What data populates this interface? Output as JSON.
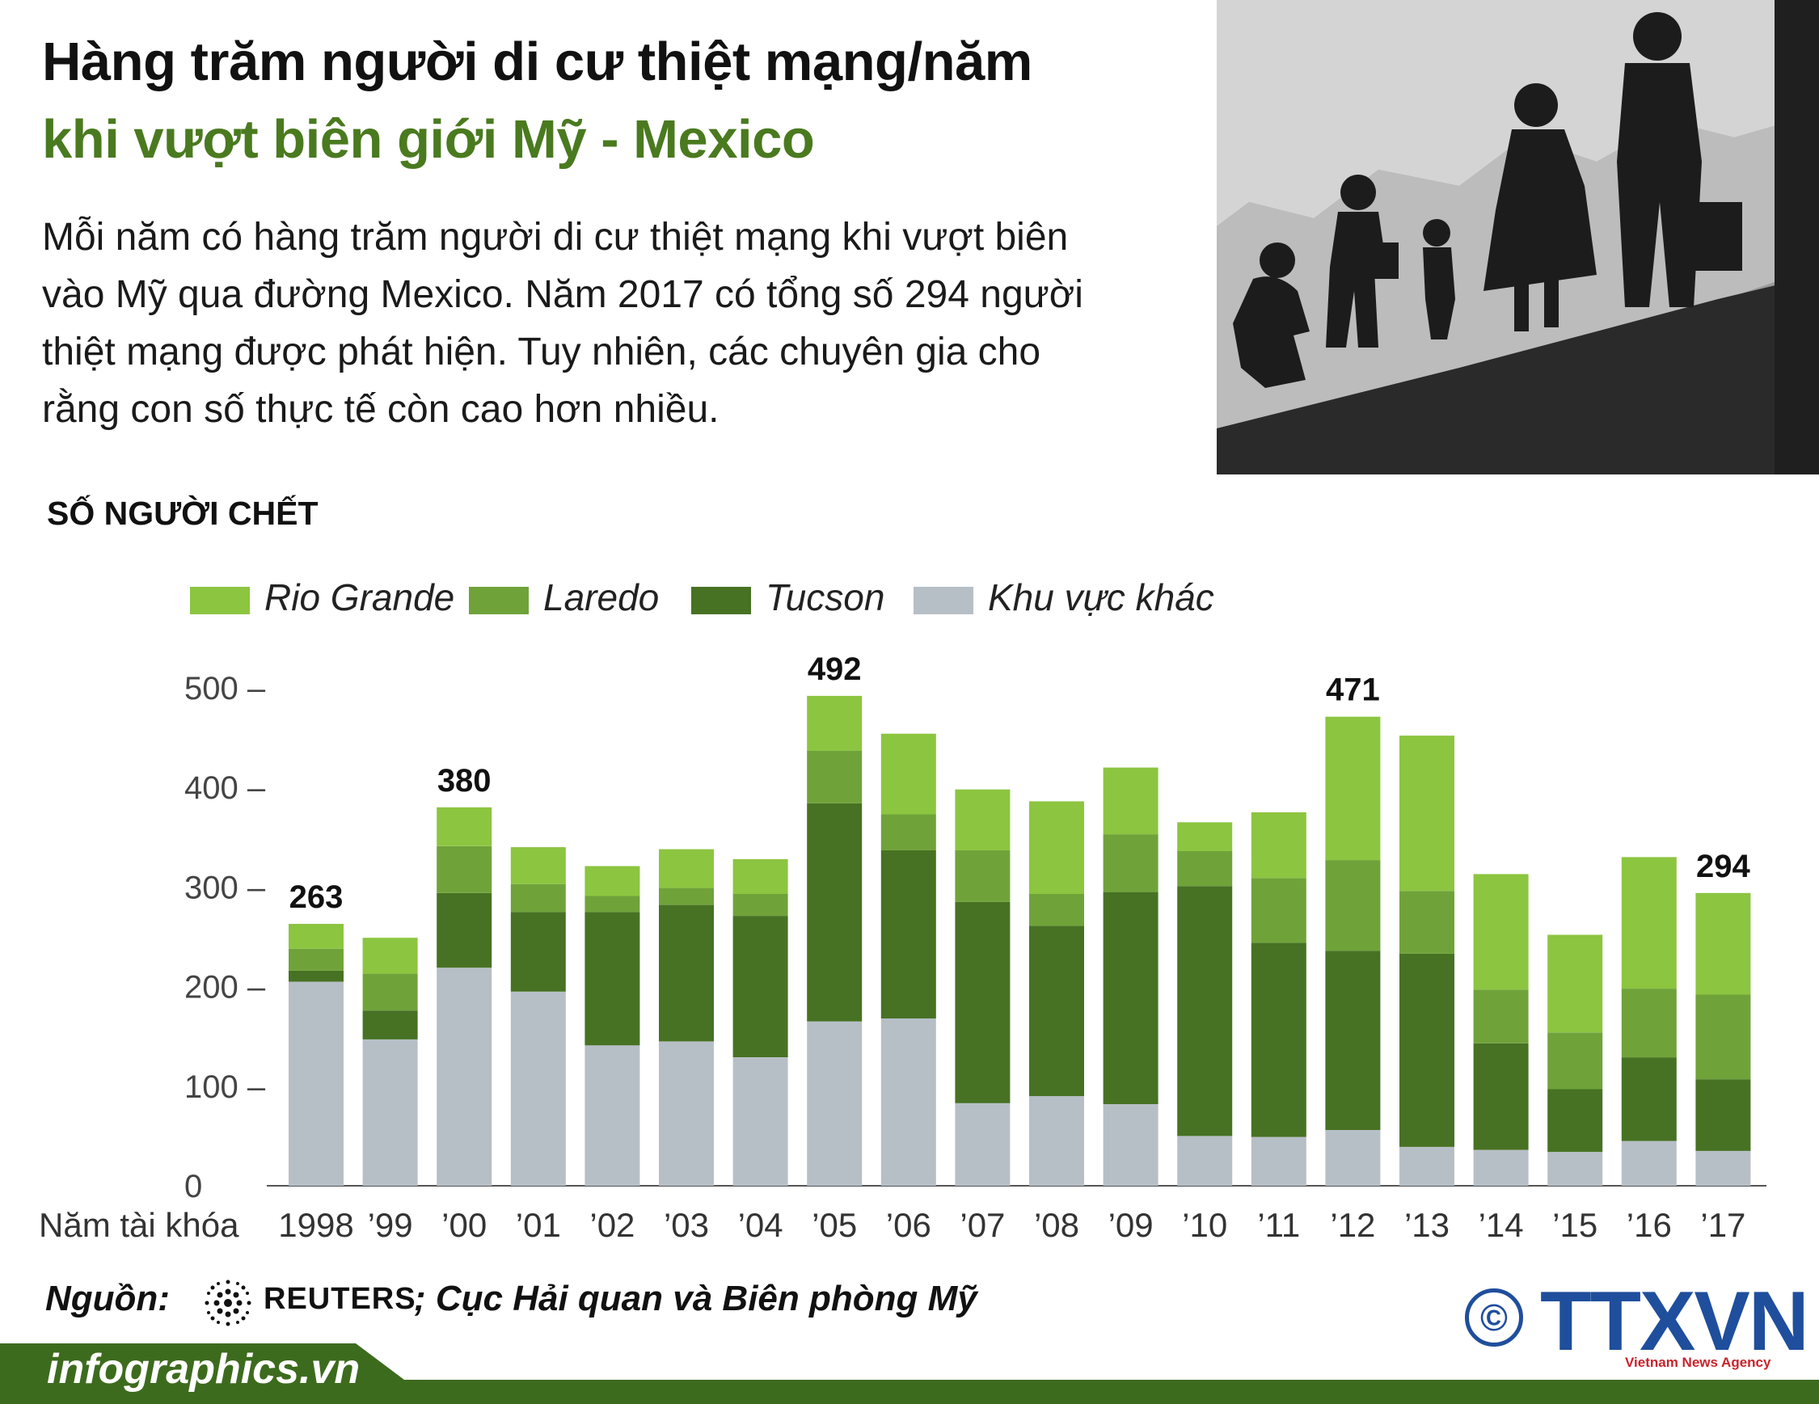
{
  "header": {
    "title_line1": "Hàng trăm người di cư thiệt mạng/năm",
    "title_line2": "khi vượt biên giới Mỹ - Mexico",
    "intro_lines": [
      "Mỗi năm có hàng trăm người di cư thiệt mạng khi vượt biên",
      "vào Mỹ qua đường Mexico. Năm 2017 có tổng số 294 người",
      "thiệt mạng được phát hiện. Tuy nhiên, các chuyên gia cho",
      "rằng con số thực tế còn cao hơn nhiều."
    ]
  },
  "colors": {
    "rio_grande": "#8cc540",
    "laredo": "#6fa33a",
    "tucson": "#477223",
    "other": "#b7bfc6",
    "title_green": "#4a7a1f",
    "footer_green": "#3d6b1e",
    "ttxvn_blue": "#1f4e9c"
  },
  "chart_data": {
    "type": "bar",
    "stacked": true,
    "title": "SỐ NGƯỜI CHẾT",
    "xlabel_prefix": "Năm tài khóa",
    "categories": [
      "1998",
      "’99",
      "’00",
      "’01",
      "’02",
      "’03",
      "’04",
      "’05",
      "’06",
      "’07",
      "’08",
      "’09",
      "’10",
      "’11",
      "’12",
      "’13",
      "’14",
      "’15",
      "’16",
      "’17"
    ],
    "series": [
      {
        "name": "Khu vực khác",
        "color_key": "other",
        "values": [
          205,
          147,
          219,
          195,
          141,
          145,
          129,
          165,
          168,
          83,
          90,
          82,
          50,
          49,
          56,
          39,
          36,
          34,
          45,
          35
        ]
      },
      {
        "name": "Tucson",
        "color_key": "tucson",
        "values": [
          11,
          29,
          75,
          80,
          134,
          137,
          142,
          219,
          169,
          202,
          171,
          213,
          251,
          195,
          180,
          194,
          107,
          63,
          84,
          72
        ]
      },
      {
        "name": "Laredo",
        "color_key": "laredo",
        "values": [
          22,
          37,
          47,
          28,
          16,
          17,
          22,
          53,
          36,
          52,
          32,
          58,
          35,
          65,
          91,
          63,
          54,
          57,
          69,
          85
        ]
      },
      {
        "name": "Rio Grande",
        "color_key": "rio_grande",
        "values": [
          25,
          36,
          39,
          37,
          30,
          39,
          35,
          55,
          81,
          61,
          93,
          67,
          29,
          66,
          144,
          156,
          116,
          98,
          132,
          102
        ]
      }
    ],
    "totals": [
      263,
      249,
      380,
      340,
      321,
      338,
      328,
      492,
      454,
      398,
      386,
      420,
      365,
      375,
      471,
      452,
      313,
      252,
      330,
      294
    ],
    "value_labels": [
      {
        "index": 0,
        "text": "263"
      },
      {
        "index": 2,
        "text": "380"
      },
      {
        "index": 7,
        "text": "492"
      },
      {
        "index": 14,
        "text": "471"
      },
      {
        "index": 19,
        "text": "294"
      }
    ],
    "legend_order": [
      "Rio Grande",
      "Laredo",
      "Tucson",
      "Khu vực khác"
    ],
    "legend_placement": "top",
    "ylim": [
      0,
      500
    ],
    "yticks": [
      {
        "value": 0,
        "label": "0"
      },
      {
        "value": 100,
        "label": "100 –"
      },
      {
        "value": 200,
        "label": "200 –"
      },
      {
        "value": 300,
        "label": "300 –"
      },
      {
        "value": 400,
        "label": "400 –"
      },
      {
        "value": 500,
        "label": "500 –"
      }
    ],
    "grid": false
  },
  "source": {
    "label": "Nguồn:",
    "reuters": "REUTERS",
    "tail": "; Cục Hải quan và Biên phòng Mỹ"
  },
  "branding": {
    "copyright_symbol": "©",
    "ttxvn": "TTXVN",
    "ttxvn_subtitle": "Vietnam News Agency",
    "footer_site": "infographics.vn"
  }
}
